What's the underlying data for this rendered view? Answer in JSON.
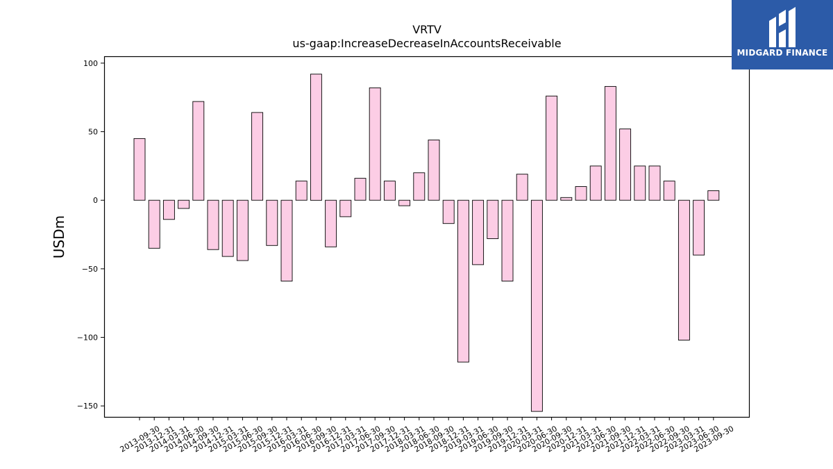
{
  "brand": {
    "name": "MIDGARD FINANCE",
    "logo_icon": "midgard-m-logo-icon",
    "background_color": "#2c5ba8"
  },
  "chart_data": {
    "type": "bar",
    "title": "VRTV",
    "subtitle": "us-gaap:IncreaseDecreaseInAccountsReceivable",
    "xlabel": "",
    "ylabel": "USDm",
    "ylim": [
      -158,
      105
    ],
    "yticks": [
      -150,
      -100,
      -50,
      0,
      50,
      100
    ],
    "grid": false,
    "legend": "none",
    "bar_color": "#fccde5",
    "categories": [
      "2013-09-30",
      "2013-12-31",
      "2014-03-31",
      "2014-06-30",
      "2014-09-30",
      "2014-12-31",
      "2015-03-31",
      "2015-06-30",
      "2015-09-30",
      "2015-12-31",
      "2016-03-31",
      "2016-06-30",
      "2016-09-30",
      "2016-12-31",
      "2017-03-31",
      "2017-06-30",
      "2017-09-30",
      "2017-12-31",
      "2018-03-31",
      "2018-06-30",
      "2018-09-30",
      "2018-12-31",
      "2019-03-31",
      "2019-06-30",
      "2019-09-30",
      "2019-12-31",
      "2020-03-31",
      "2020-06-30",
      "2020-09-30",
      "2020-12-31",
      "2021-03-31",
      "2021-06-30",
      "2021-09-30",
      "2021-12-31",
      "2022-03-31",
      "2022-06-30",
      "2022-09-30",
      "2023-03-31",
      "2023-06-30",
      "2023-09-30"
    ],
    "values": [
      45,
      -35,
      -14,
      -6,
      72,
      -36,
      -41,
      -44,
      64,
      -33,
      -59,
      14,
      92,
      -34,
      -12,
      16,
      82,
      14,
      -4,
      20,
      44,
      -17,
      -118,
      -47,
      -28,
      -59,
      19,
      -154,
      76,
      2,
      10,
      25,
      83,
      52,
      25,
      25,
      14,
      -102,
      -40,
      7
    ]
  }
}
